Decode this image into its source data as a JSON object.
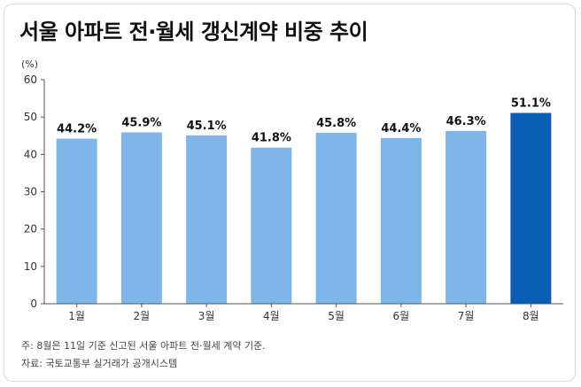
{
  "title": "서울 아파트 전·월세 갱신계약 비중 추이",
  "chart_data": {
    "type": "bar",
    "unit": "(%)",
    "categories": [
      "1월",
      "2월",
      "3월",
      "4월",
      "5월",
      "6월",
      "7월",
      "8월"
    ],
    "values": [
      44.2,
      45.9,
      45.1,
      41.8,
      45.8,
      44.4,
      46.3,
      51.1
    ],
    "value_labels": [
      "44.2%",
      "45.9%",
      "45.1%",
      "41.8%",
      "45.8%",
      "44.4%",
      "46.3%",
      "51.1%"
    ],
    "ylim": [
      0,
      60
    ],
    "yticks": [
      0,
      10,
      20,
      30,
      40,
      50,
      60
    ],
    "grid": false,
    "colors": {
      "default_bar": "#7fb6ea",
      "highlight_bar": "#0a5fb4"
    },
    "highlight_index": 7
  },
  "notes": {
    "footnote": "주: 8월은 11일 기준 신고된 서울 아파트 전·월세 계약 기준.",
    "source": "자료: 국토교통부 실거래가 공개시스템"
  }
}
